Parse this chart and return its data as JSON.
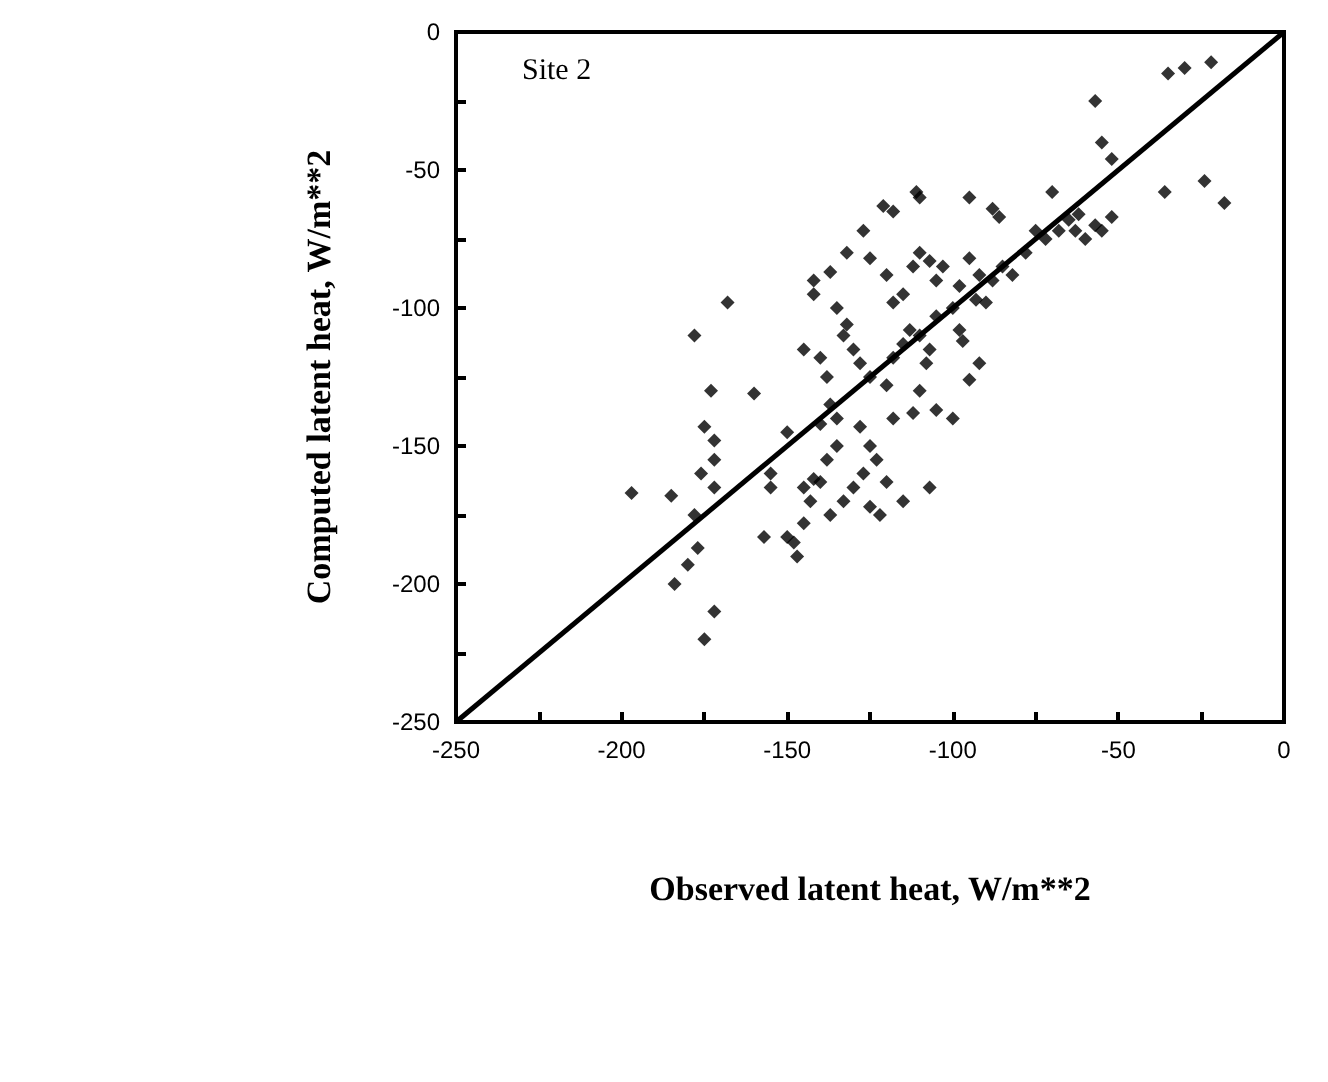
{
  "chart_data": {
    "type": "scatter",
    "xlabel": "Observed latent heat, W/m**2",
    "ylabel": "Computed latent heat, W/m**2",
    "annotations": [
      "Site 2"
    ],
    "xlim": [
      -250,
      0
    ],
    "ylim": [
      -250,
      0
    ],
    "xticks": [
      -250,
      {
        "value": -225,
        "label": null
      },
      -200,
      {
        "value": -175,
        "label": null
      },
      -150,
      {
        "value": -125,
        "label": null
      },
      -100,
      {
        "value": -75,
        "label": null
      },
      -50,
      {
        "value": -25,
        "label": null
      },
      0
    ],
    "yticks": [
      -250,
      {
        "value": -225,
        "label": null
      },
      -200,
      {
        "value": -175,
        "label": null
      },
      -150,
      {
        "value": -125,
        "label": null
      },
      -100,
      {
        "value": -75,
        "label": null
      },
      -50,
      {
        "value": -25,
        "label": null
      },
      0
    ],
    "grid": false,
    "marker": "diamond",
    "series": [
      {
        "color": "#000000",
        "x": [
          -197,
          -185,
          -178,
          -175,
          -172,
          -172,
          -173,
          -168,
          -160,
          -176,
          -178,
          -172,
          -184,
          -180,
          -177,
          -175,
          -172,
          -155,
          -150,
          -155,
          -150,
          -157,
          -148,
          -147,
          -145,
          -143,
          -142,
          -140,
          -145,
          -138,
          -140,
          -137,
          -135,
          -133,
          -130,
          -127,
          -125,
          -122,
          -120,
          -115,
          -107,
          -128,
          -125,
          -123,
          -118,
          -112,
          -110,
          -105,
          -100,
          -95,
          -92,
          -135,
          -137,
          -138,
          -140,
          -145,
          -142,
          -142,
          -135,
          -132,
          -133,
          -130,
          -128,
          -125,
          -120,
          -118,
          -115,
          -113,
          -110,
          -108,
          -107,
          -105,
          -100,
          -98,
          -97,
          -93,
          -90,
          -88,
          -85,
          -82,
          -78,
          -75,
          -72,
          -68,
          -65,
          -62,
          -63,
          -60,
          -118,
          -115,
          -112,
          -110,
          -107,
          -103,
          -105,
          -98,
          -95,
          -92,
          -120,
          -125,
          -127,
          -132,
          -137,
          -118,
          -121,
          -111,
          -110,
          -95,
          -88,
          -86,
          -70,
          -57,
          -55,
          -52,
          -36,
          -24,
          -18,
          -57,
          -55,
          -52,
          -35,
          -30,
          -22
        ],
        "values": [
          -167,
          -168,
          -110,
          -143,
          -148,
          -155,
          -130,
          -98,
          -131,
          -160,
          -175,
          -165,
          -200,
          -193,
          -187,
          -220,
          -210,
          -165,
          -145,
          -160,
          -183,
          -183,
          -185,
          -190,
          -178,
          -170,
          -162,
          -163,
          -165,
          -155,
          -142,
          -175,
          -150,
          -170,
          -165,
          -160,
          -172,
          -175,
          -163,
          -170,
          -165,
          -143,
          -150,
          -155,
          -140,
          -138,
          -130,
          -137,
          -140,
          -126,
          -120,
          -140,
          -135,
          -125,
          -118,
          -115,
          -95,
          -90,
          -100,
          -106,
          -110,
          -115,
          -120,
          -125,
          -128,
          -118,
          -113,
          -108,
          -110,
          -120,
          -115,
          -103,
          -100,
          -108,
          -112,
          -97,
          -98,
          -90,
          -85,
          -88,
          -80,
          -72,
          -75,
          -72,
          -68,
          -66,
          -72,
          -75,
          -98,
          -95,
          -85,
          -80,
          -83,
          -85,
          -90,
          -92,
          -82,
          -88,
          -88,
          -82,
          -72,
          -80,
          -87,
          -65,
          -63,
          -58,
          -60,
          -60,
          -64,
          -67,
          -58,
          -70,
          -72,
          -67,
          -58,
          -54,
          -62,
          -25,
          -40,
          -46,
          -15,
          -13,
          -11
        ]
      },
      {
        "type": "line",
        "color": "#000000",
        "marker": "none",
        "x": [
          -250,
          0
        ],
        "values": [
          -250,
          0
        ]
      }
    ]
  }
}
